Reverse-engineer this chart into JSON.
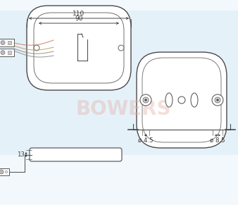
{
  "bg_color": "#f2f8fc",
  "line_color": "#4a4a4a",
  "dim_color": "#3a3a3a",
  "watermark_color": "#e0b0a8",
  "dim_110": "110",
  "dim_90": "90",
  "dim_13": "13",
  "dim_4_5": "ø 4.5",
  "dim_8_5": "ø 8.5",
  "wire_color1": "#cc7755",
  "wire_color2": "#bb9955",
  "wire_color3": "#888888",
  "fig_w": 3.38,
  "fig_h": 2.91
}
